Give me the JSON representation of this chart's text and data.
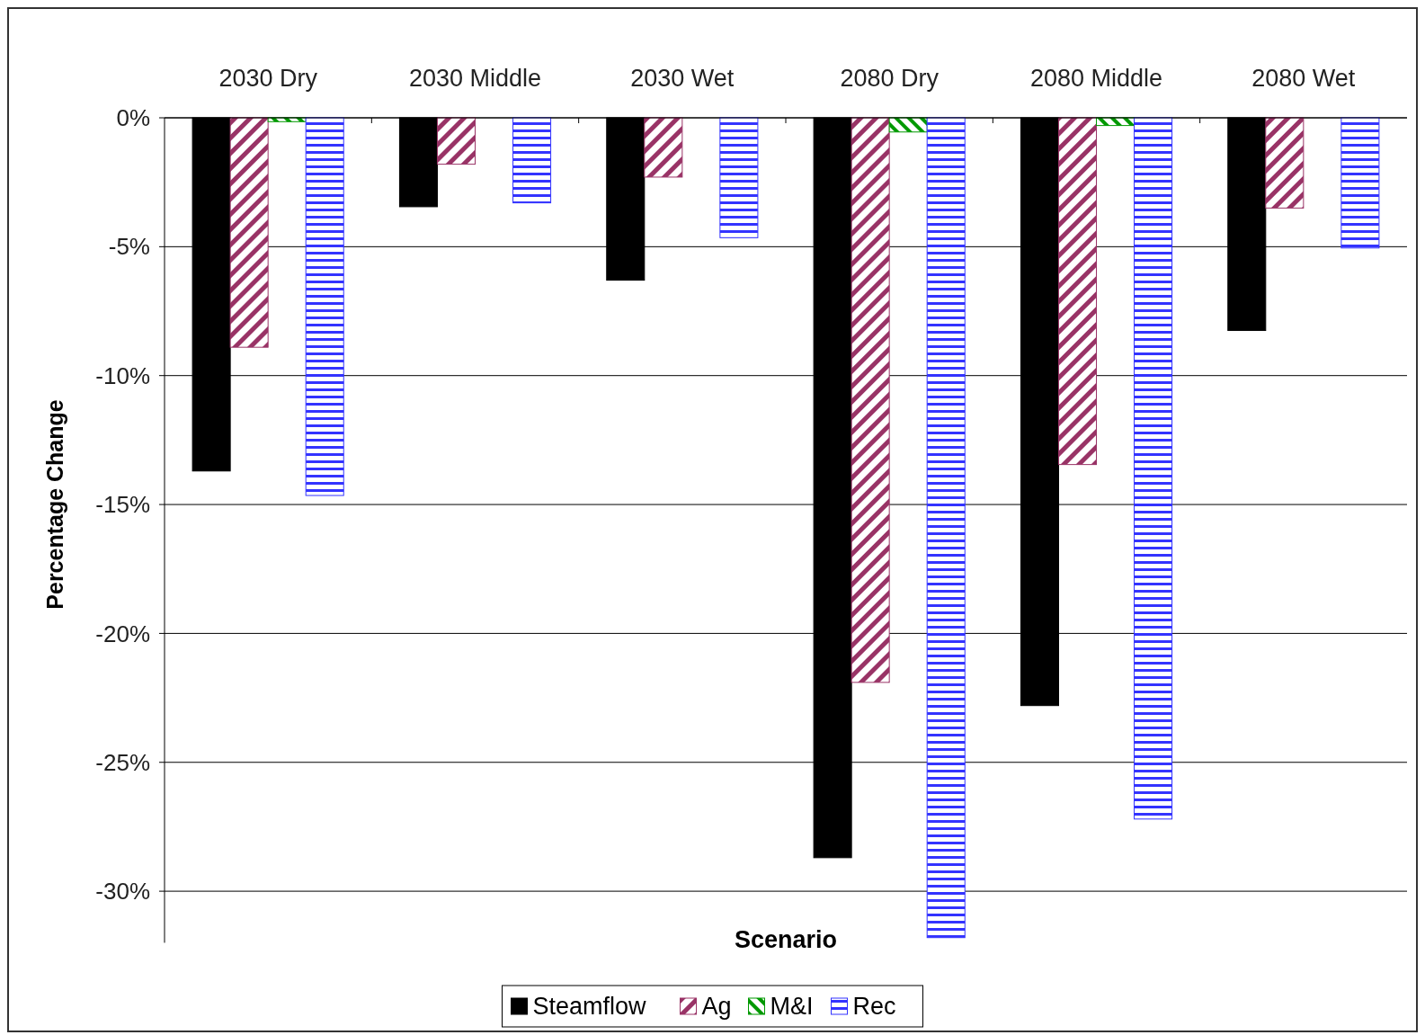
{
  "chart_data": {
    "type": "bar",
    "xlabel": "Scenario",
    "ylabel": "Percentage Change",
    "categories": [
      "2030 Dry",
      "2030 Middle",
      "2030 Wet",
      "2080 Dry",
      "2080 Middle",
      "2080 Wet"
    ],
    "series": [
      {
        "name": "Steamflow",
        "color": "#000000",
        "values": [
          -13.7,
          -3.45,
          -6.3,
          -28.7,
          -22.8,
          -8.25
        ]
      },
      {
        "name": "Ag",
        "color": "#993366",
        "values": [
          -8.9,
          -1.8,
          -2.3,
          -21.9,
          -13.45,
          -3.5
        ]
      },
      {
        "name": "M&I",
        "color": "#009900",
        "values": [
          -0.15,
          null,
          null,
          -0.55,
          -0.3,
          null
        ]
      },
      {
        "name": "Rec",
        "color": "#3333ff",
        "values": [
          -14.65,
          -3.3,
          -4.65,
          -31.8,
          -27.2,
          -5.05
        ]
      }
    ],
    "ylim": [
      -32,
      0
    ],
    "yticks": [
      {
        "value": 0,
        "label": "0%"
      },
      {
        "value": -5,
        "label": "-5%"
      },
      {
        "value": -10,
        "label": "-10%"
      },
      {
        "value": -15,
        "label": "-15%"
      },
      {
        "value": -20,
        "label": "-20%"
      },
      {
        "value": -25,
        "label": "-25%"
      },
      {
        "value": -30,
        "label": "-30%"
      }
    ],
    "grid": "y",
    "legend": "bottom"
  }
}
